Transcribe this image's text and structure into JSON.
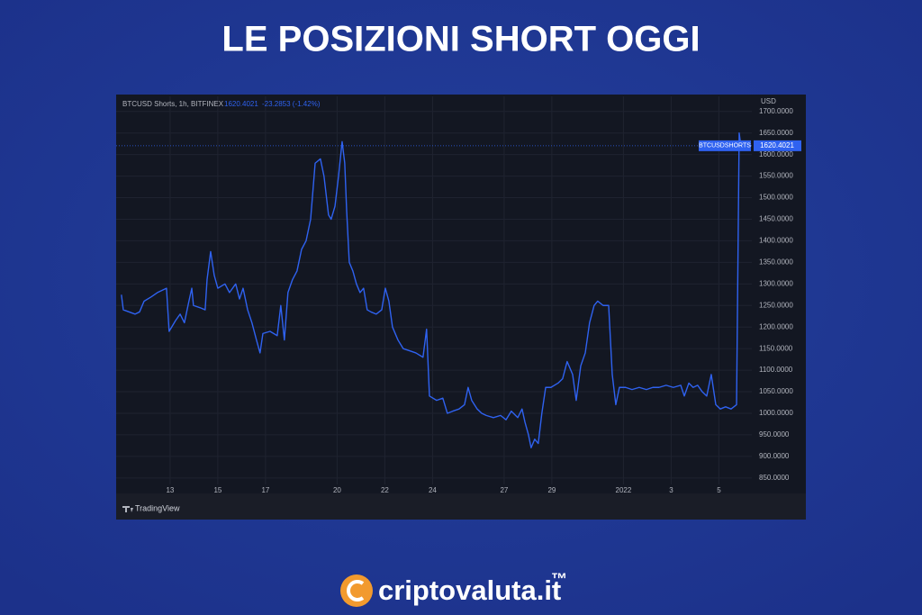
{
  "chart_data": {
    "type": "line",
    "title": "LE POSIZIONI SHORT OGGI",
    "symbol_info": "BTCUSD Shorts, 1h, BITFINEX",
    "change": "-23.2853 (-1.42%)",
    "currency": "USD",
    "watermark": "TradingView",
    "grid": true,
    "xlim": [
      10.74,
      37.38
    ],
    "xticks": [
      13,
      15,
      17,
      20,
      22,
      24,
      27,
      29,
      {
        "value": 32,
        "label": "2022"
      },
      {
        "value": 34,
        "label": "3"
      },
      {
        "value": 36,
        "label": "5"
      }
    ],
    "ylim": [
      835,
      1735
    ],
    "yticks": [
      {
        "value": 850,
        "label": "850.0000"
      },
      {
        "value": 900,
        "label": "900.0000"
      },
      {
        "value": 950,
        "label": "950.0000"
      },
      {
        "value": 1000,
        "label": "1000.0000"
      },
      {
        "value": 1050,
        "label": "1050.0000"
      },
      {
        "value": 1100,
        "label": "1100.0000"
      },
      {
        "value": 1150,
        "label": "1150.0000"
      },
      {
        "value": 1200,
        "label": "1200.0000"
      },
      {
        "value": 1250,
        "label": "1250.0000"
      },
      {
        "value": 1300,
        "label": "1300.0000"
      },
      {
        "value": 1350,
        "label": "1350.0000"
      },
      {
        "value": 1400,
        "label": "1400.0000"
      },
      {
        "value": 1450,
        "label": "1450.0000"
      },
      {
        "value": 1500,
        "label": "1500.0000"
      },
      {
        "value": 1550,
        "label": "1550.0000"
      },
      {
        "value": 1600,
        "label": "1600.0000"
      },
      {
        "value": 1650,
        "label": "1650.0000"
      },
      {
        "value": 1700,
        "label": "1700.0000"
      }
    ],
    "series": [
      {
        "name": "BTCUSDSHORTS",
        "color": "#2f62f0",
        "x": [
          10.96,
          11.04,
          11.53,
          11.72,
          11.91,
          12.21,
          12.47,
          12.85,
          12.96,
          13.23,
          13.42,
          13.6,
          13.79,
          13.91,
          13.98,
          14.25,
          14.47,
          14.55,
          14.7,
          14.85,
          15.0,
          15.3,
          15.49,
          15.75,
          15.91,
          16.06,
          16.25,
          16.43,
          16.62,
          16.77,
          16.89,
          17.19,
          17.49,
          17.64,
          17.79,
          17.94,
          18.13,
          18.32,
          18.51,
          18.7,
          18.89,
          19.08,
          19.3,
          19.45,
          19.64,
          19.75,
          19.91,
          20.06,
          20.21,
          20.32,
          20.4,
          20.51,
          20.66,
          20.81,
          20.96,
          21.11,
          21.26,
          21.42,
          21.64,
          21.87,
          22.02,
          22.17,
          22.32,
          22.55,
          22.77,
          23.04,
          23.3,
          23.6,
          23.75,
          23.87,
          24.17,
          24.43,
          24.62,
          24.85,
          25.11,
          25.34,
          25.49,
          25.64,
          25.87,
          26.06,
          26.25,
          26.55,
          26.85,
          27.08,
          27.3,
          27.57,
          27.75,
          27.87,
          28.02,
          28.13,
          28.28,
          28.43,
          28.58,
          28.74,
          28.96,
          29.26,
          29.45,
          29.64,
          29.87,
          30.02,
          30.21,
          30.4,
          30.58,
          30.77,
          30.92,
          31.15,
          31.38,
          31.53,
          31.68,
          31.83,
          32.09,
          32.36,
          32.66,
          32.96,
          33.23,
          33.49,
          33.79,
          34.09,
          34.4,
          34.55,
          34.74,
          34.92,
          35.11,
          35.3,
          35.49,
          35.68,
          35.87,
          36.06,
          36.28,
          36.51,
          36.74,
          36.85,
          36.92
        ],
        "values": [
          1275,
          1240,
          1230,
          1235,
          1260,
          1270,
          1280,
          1290,
          1190,
          1215,
          1230,
          1210,
          1260,
          1290,
          1250,
          1245,
          1240,
          1310,
          1375,
          1320,
          1290,
          1300,
          1280,
          1300,
          1265,
          1290,
          1240,
          1210,
          1170,
          1140,
          1185,
          1190,
          1180,
          1250,
          1170,
          1280,
          1310,
          1330,
          1380,
          1400,
          1450,
          1580,
          1590,
          1550,
          1460,
          1450,
          1480,
          1550,
          1630,
          1580,
          1470,
          1350,
          1330,
          1300,
          1280,
          1290,
          1240,
          1235,
          1230,
          1240,
          1290,
          1260,
          1200,
          1170,
          1150,
          1145,
          1140,
          1130,
          1195,
          1040,
          1030,
          1035,
          1000,
          1005,
          1010,
          1020,
          1060,
          1030,
          1010,
          1000,
          995,
          990,
          995,
          985,
          1005,
          990,
          1010,
          980,
          950,
          920,
          940,
          930,
          1000,
          1060,
          1060,
          1070,
          1080,
          1120,
          1090,
          1030,
          1110,
          1140,
          1210,
          1250,
          1260,
          1250,
          1250,
          1090,
          1020,
          1060,
          1060,
          1055,
          1060,
          1055,
          1060,
          1060,
          1065,
          1060,
          1065,
          1040,
          1070,
          1060,
          1065,
          1050,
          1040,
          1090,
          1020,
          1010,
          1015,
          1010,
          1020,
          1650,
          1620.4021
        ]
      }
    ]
  },
  "brand": {
    "name": "criptovaluta.it",
    "mark": "™"
  }
}
